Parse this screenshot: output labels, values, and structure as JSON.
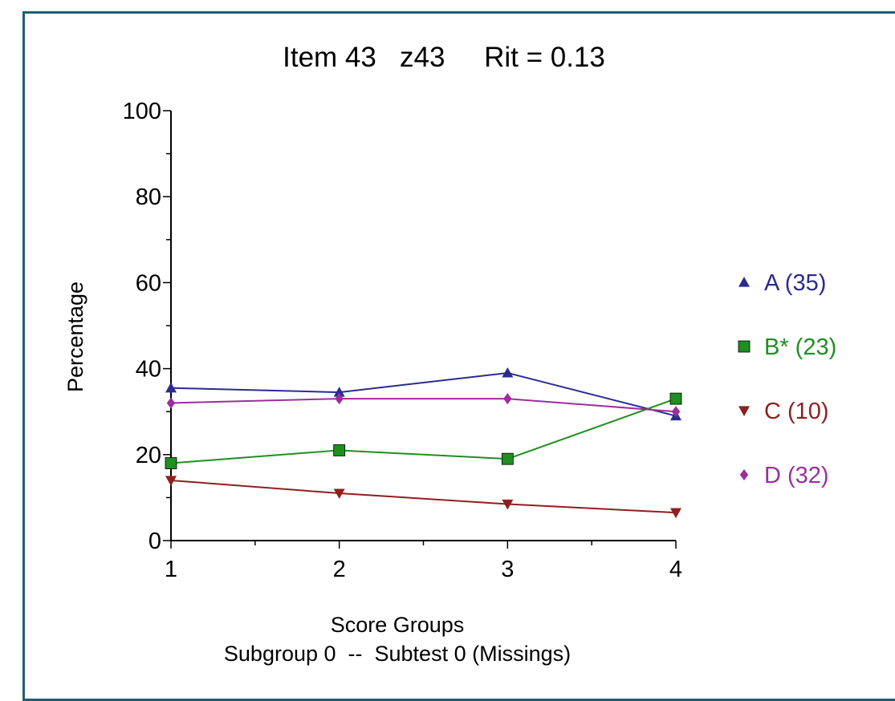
{
  "chart_data": {
    "type": "line",
    "title": "Item 43   z43     Rit = 0.13",
    "xlabel": "Score Groups",
    "subtitle": "Subgroup 0  --  Subtest 0 (Missings)",
    "ylabel": "Percentage",
    "x": [
      1,
      2,
      3,
      4
    ],
    "x_ticks": [
      "1",
      "2",
      "3",
      "4"
    ],
    "ylim": [
      0,
      100
    ],
    "y_ticks": [
      "0",
      "20",
      "40",
      "60",
      "80",
      "100"
    ],
    "legend_position": "right",
    "series": [
      {
        "name": "A",
        "legend_label": "A (35)",
        "values": [
          35.5,
          34.5,
          39,
          29
        ],
        "color": "#2b2b8f",
        "marker": "triangle-up"
      },
      {
        "name": "B*",
        "legend_label": "B* (23)",
        "values": [
          18,
          21,
          19,
          33
        ],
        "color": "#1f8f1f",
        "marker": "square"
      },
      {
        "name": "C",
        "legend_label": "C (10)",
        "values": [
          14,
          11,
          8.5,
          6.5
        ],
        "color": "#8f1f1f",
        "marker": "triangle-down"
      },
      {
        "name": "D",
        "legend_label": "D (32)",
        "values": [
          32,
          33,
          33,
          30
        ],
        "color": "#9b2f9b",
        "marker": "diamond"
      }
    ]
  }
}
